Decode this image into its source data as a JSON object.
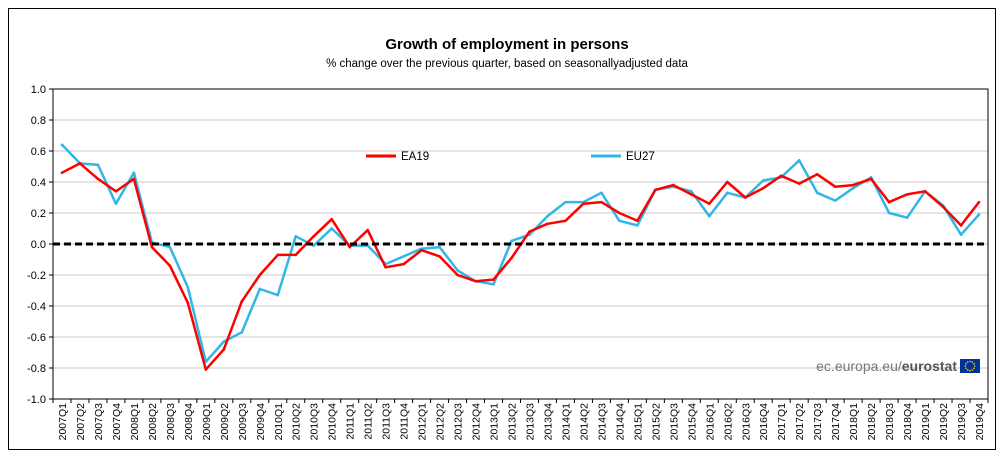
{
  "chart_data": {
    "type": "line",
    "title": "Growth of employment  in persons",
    "subtitle": "% change over the previous quarter, based on seasonallyadjusted data",
    "xlabel": "",
    "ylabel": "",
    "ylim": [
      -1.0,
      1.0
    ],
    "yticks": [
      "1.0",
      "0.8",
      "0.6",
      "0.4",
      "0.2",
      "0.0",
      "-0.2",
      "-0.4",
      "-0.6",
      "-0.8",
      "-1.0"
    ],
    "legend_position": "top-center",
    "categories": [
      "2007Q1",
      "2007Q2",
      "2007Q3",
      "2007Q4",
      "2008Q1",
      "2008Q2",
      "2008Q3",
      "2008Q4",
      "2009Q1",
      "2009Q2",
      "2009Q3",
      "2009Q4",
      "2010Q1",
      "2010Q2",
      "2010Q3",
      "2010Q4",
      "2011Q1",
      "2011Q2",
      "2011Q3",
      "2011Q4",
      "2012Q1",
      "2012Q2",
      "2012Q3",
      "2012Q4",
      "2013Q1",
      "2013Q2",
      "2013Q3",
      "2013Q4",
      "2014Q1",
      "2014Q2",
      "2014Q3",
      "2014Q4",
      "2015Q1",
      "2015Q2",
      "2015Q3",
      "2015Q4",
      "2016Q1",
      "2016Q2",
      "2016Q3",
      "2016Q4",
      "2017Q1",
      "2017Q2",
      "2017Q3",
      "2017Q4",
      "2018Q1",
      "2018Q2",
      "2018Q3",
      "2018Q4",
      "2019Q1",
      "2019Q2",
      "2019Q3",
      "2019Q4"
    ],
    "series": [
      {
        "name": "EA19",
        "color": "#ff0000",
        "values": [
          0.46,
          0.52,
          0.42,
          0.34,
          0.42,
          -0.02,
          -0.14,
          -0.38,
          -0.81,
          -0.68,
          -0.37,
          -0.2,
          -0.07,
          -0.07,
          0.05,
          0.16,
          -0.02,
          0.09,
          -0.15,
          -0.13,
          -0.04,
          -0.08,
          -0.2,
          -0.24,
          -0.23,
          -0.09,
          0.08,
          0.13,
          0.15,
          0.26,
          0.27,
          0.2,
          0.15,
          0.35,
          0.38,
          0.32,
          0.26,
          0.4,
          0.3,
          0.36,
          0.44,
          0.39,
          0.45,
          0.37,
          0.38,
          0.42,
          0.27,
          0.32,
          0.34,
          0.24,
          0.12,
          0.27
        ]
      },
      {
        "name": "EU27",
        "color": "#33b5e5",
        "values": [
          0.64,
          0.52,
          0.51,
          0.26,
          0.46,
          0.01,
          -0.02,
          -0.28,
          -0.76,
          -0.63,
          -0.57,
          -0.29,
          -0.33,
          0.05,
          -0.01,
          0.1,
          -0.01,
          -0.01,
          -0.13,
          -0.08,
          -0.03,
          -0.02,
          -0.17,
          -0.24,
          -0.26,
          0.02,
          0.06,
          0.18,
          0.27,
          0.27,
          0.33,
          0.15,
          0.12,
          0.35,
          0.37,
          0.34,
          0.18,
          0.33,
          0.3,
          0.41,
          0.43,
          0.54,
          0.33,
          0.28,
          0.36,
          0.43,
          0.2,
          0.17,
          0.34,
          0.25,
          0.06,
          0.19
        ]
      }
    ]
  },
  "logo": {
    "text_plain": "ec.europa.eu/",
    "text_bold": "eurostat",
    "flag_color": "#003399",
    "star_color": "#ffcc00"
  }
}
